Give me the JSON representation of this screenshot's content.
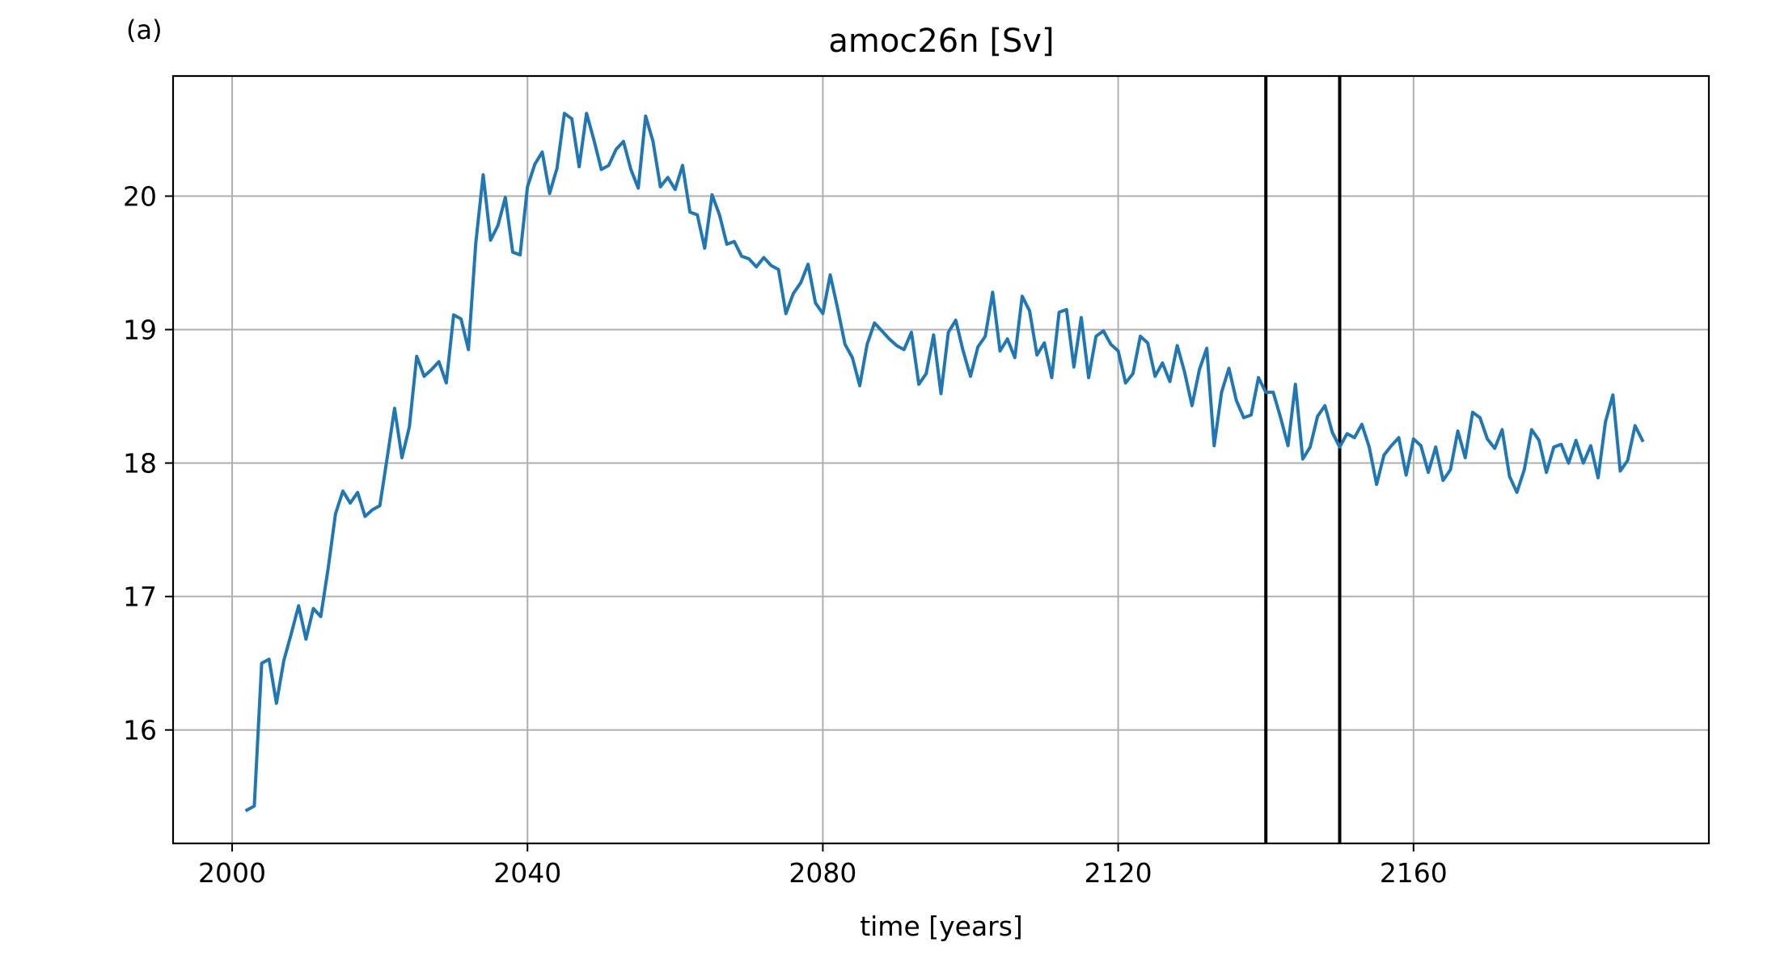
{
  "panel_label": "(a)",
  "colors": {
    "series": "#1f77b4",
    "grid": "#b0b0b0",
    "marker_lines": "#000000",
    "frame": "#000000"
  },
  "chart_data": {
    "type": "line",
    "title": "amoc26n [Sv]",
    "xlabel": "time [years]",
    "ylabel": "",
    "xlim": [
      1992,
      2200
    ],
    "ylim": [
      15.15,
      20.9
    ],
    "xticks": [
      2000,
      2040,
      2080,
      2120,
      2160
    ],
    "xtick_labels": [
      "2000",
      "2040",
      "2080",
      "2120",
      "2160"
    ],
    "yticks": [
      16,
      17,
      18,
      19,
      20
    ],
    "ytick_labels": [
      "16",
      "17",
      "18",
      "19",
      "20"
    ],
    "grid": true,
    "vertical_lines": [
      2140,
      2150
    ],
    "series": [
      {
        "name": "",
        "x_start": 2002,
        "x_step": 1,
        "values": [
          15.4,
          15.43,
          16.5,
          16.53,
          16.2,
          16.52,
          16.72,
          16.93,
          16.68,
          16.91,
          16.85,
          17.21,
          17.62,
          17.79,
          17.7,
          17.78,
          17.6,
          17.65,
          17.68,
          18.04,
          18.41,
          18.04,
          18.27,
          18.8,
          18.65,
          18.7,
          18.76,
          18.6,
          19.11,
          19.08,
          18.85,
          19.65,
          20.16,
          19.67,
          19.78,
          19.99,
          19.58,
          19.56,
          20.07,
          20.24,
          20.33,
          20.02,
          20.21,
          20.62,
          20.58,
          20.22,
          20.62,
          20.42,
          20.2,
          20.23,
          20.35,
          20.41,
          20.2,
          20.06,
          20.6,
          20.41,
          20.07,
          20.14,
          20.05,
          20.23,
          19.88,
          19.86,
          19.61,
          20.01,
          19.86,
          19.64,
          19.66,
          19.55,
          19.53,
          19.47,
          19.54,
          19.48,
          19.45,
          19.12,
          19.27,
          19.35,
          19.49,
          19.2,
          19.12,
          19.41,
          19.16,
          18.89,
          18.79,
          18.58,
          18.89,
          19.05,
          18.99,
          18.93,
          18.88,
          18.85,
          18.98,
          18.59,
          18.67,
          18.96,
          18.52,
          18.98,
          19.07,
          18.84,
          18.65,
          18.87,
          18.95,
          19.28,
          18.84,
          18.93,
          18.79,
          19.25,
          19.14,
          18.81,
          18.9,
          18.64,
          19.13,
          19.15,
          18.72,
          19.09,
          18.64,
          18.95,
          18.99,
          18.89,
          18.84,
          18.6,
          18.67,
          18.95,
          18.9,
          18.65,
          18.75,
          18.61,
          18.88,
          18.68,
          18.43,
          18.7,
          18.86,
          18.13,
          18.53,
          18.71,
          18.47,
          18.34,
          18.36,
          18.64,
          18.53,
          18.53,
          18.34,
          18.13,
          18.59,
          18.03,
          18.12,
          18.35,
          18.43,
          18.23,
          18.12,
          18.22,
          18.19,
          18.29,
          18.12,
          17.84,
          18.06,
          18.13,
          18.19,
          17.91,
          18.18,
          18.13,
          17.93,
          18.12,
          17.87,
          17.95,
          18.24,
          18.04,
          18.38,
          18.34,
          18.18,
          18.11,
          18.25,
          17.9,
          17.78,
          17.95,
          18.25,
          18.17,
          17.93,
          18.12,
          18.14,
          18.0,
          18.17,
          18.0,
          18.13,
          17.89,
          18.31,
          18.51,
          17.94,
          18.02,
          18.28,
          18.17
        ]
      }
    ]
  }
}
